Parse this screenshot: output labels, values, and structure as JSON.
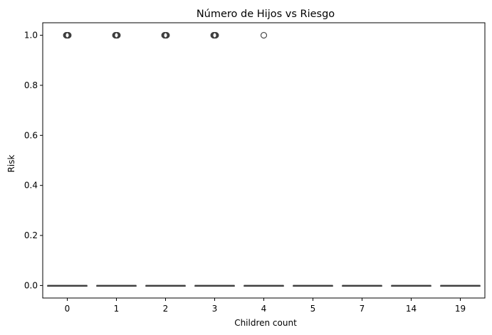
{
  "chart_data": {
    "type": "box",
    "title": "Número de Hijos vs Riesgo",
    "xlabel": "Children count",
    "ylabel": "Risk",
    "categories": [
      "0",
      "1",
      "2",
      "3",
      "4",
      "5",
      "7",
      "14",
      "19"
    ],
    "boxes": [
      {
        "category": "0",
        "q1": 0,
        "median": 0,
        "q3": 0,
        "whisker_low": 0,
        "whisker_high": 0,
        "outliers": [
          1
        ]
      },
      {
        "category": "1",
        "q1": 0,
        "median": 0,
        "q3": 0,
        "whisker_low": 0,
        "whisker_high": 0,
        "outliers": [
          1
        ]
      },
      {
        "category": "2",
        "q1": 0,
        "median": 0,
        "q3": 0,
        "whisker_low": 0,
        "whisker_high": 0,
        "outliers": [
          1
        ]
      },
      {
        "category": "3",
        "q1": 0,
        "median": 0,
        "q3": 0,
        "whisker_low": 0,
        "whisker_high": 0,
        "outliers": [
          1
        ]
      },
      {
        "category": "4",
        "q1": 0,
        "median": 0,
        "q3": 0,
        "whisker_low": 0,
        "whisker_high": 0,
        "outliers": [
          1
        ]
      },
      {
        "category": "5",
        "q1": 0,
        "median": 0,
        "q3": 0,
        "whisker_low": 0,
        "whisker_high": 0,
        "outliers": []
      },
      {
        "category": "7",
        "q1": 0,
        "median": 0,
        "q3": 0,
        "whisker_low": 0,
        "whisker_high": 0,
        "outliers": []
      },
      {
        "category": "14",
        "q1": 0,
        "median": 0,
        "q3": 0,
        "whisker_low": 0,
        "whisker_high": 0,
        "outliers": []
      },
      {
        "category": "19",
        "q1": 0,
        "median": 0,
        "q3": 0,
        "whisker_low": 0,
        "whisker_high": 0,
        "outliers": []
      }
    ],
    "yticks": [
      "0.0",
      "0.2",
      "0.4",
      "0.6",
      "0.8",
      "1.0"
    ],
    "ylim": [
      -0.05,
      1.05
    ],
    "grid": false,
    "legend": "none",
    "colors": {
      "box_line": "#3f3f3f",
      "outlier_edge": "#3f3f3f",
      "axes": "#000000"
    }
  }
}
